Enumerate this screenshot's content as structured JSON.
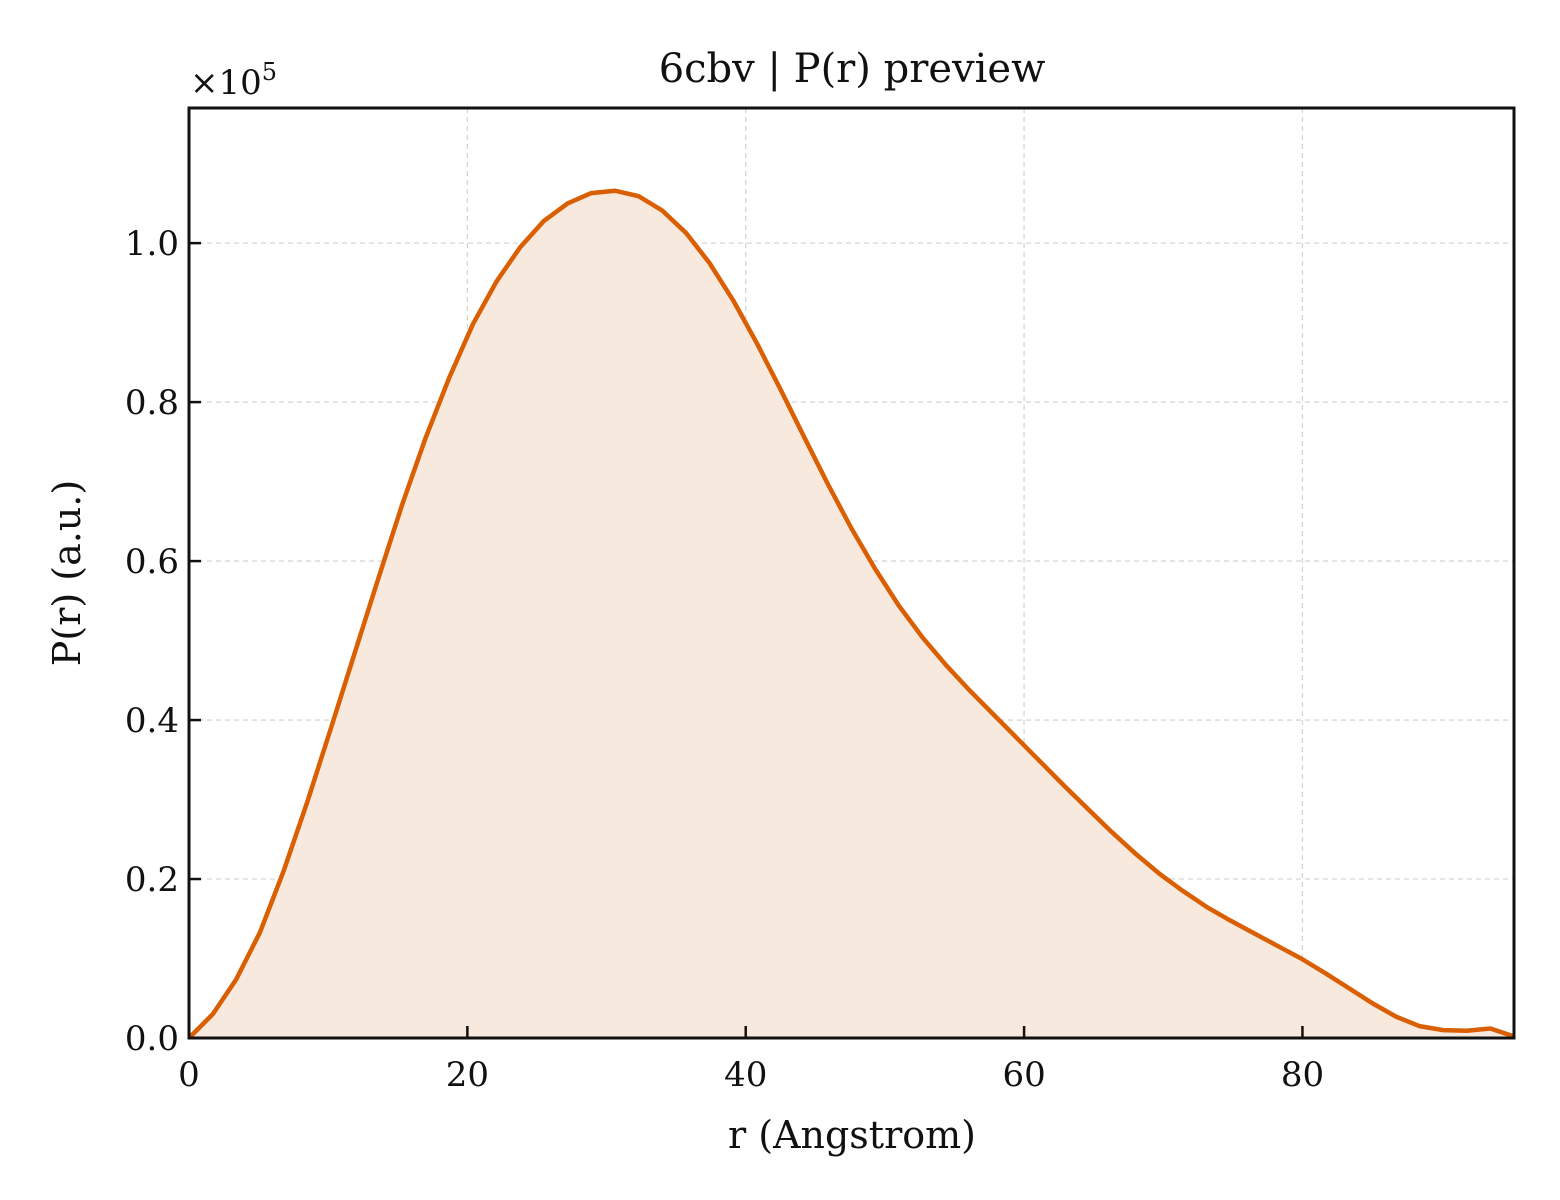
{
  "chart_data": {
    "type": "area",
    "title": "6cbv | P(r) preview",
    "xlabel": "r (Angstrom)",
    "ylabel": "P(r) (a.u.)",
    "y_offset_label": "×10",
    "y_offset_exponent": "5",
    "xlim": [
      0,
      95.2
    ],
    "ylim": [
      0,
      1.17
    ],
    "grid": true,
    "line_color": "#d95f02",
    "fill_color": "#f8e9de",
    "xticks": [
      0,
      20,
      40,
      60,
      80
    ],
    "xtick_labels": [
      "0",
      "20",
      "40",
      "60",
      "80"
    ],
    "yticks": [
      0,
      0.2,
      0.4,
      0.6,
      0.8,
      1.0
    ],
    "ytick_labels": [
      "0.0",
      "0.2",
      "0.4",
      "0.6",
      "0.8",
      "1.0"
    ],
    "series": [
      {
        "x": [
          0,
          1.7,
          3.4,
          5.1,
          6.8,
          8.5,
          10.2,
          11.9,
          13.6,
          15.3,
          17.0,
          18.7,
          20.4,
          22.1,
          23.8,
          25.5,
          27.2,
          28.9,
          30.6,
          32.3,
          34.0,
          35.7,
          37.4,
          39.1,
          40.8,
          42.5,
          44.2,
          45.9,
          47.6,
          49.3,
          51.0,
          52.7,
          54.4,
          56.1,
          57.8,
          59.5,
          61.2,
          62.9,
          64.6,
          66.3,
          68.0,
          69.7,
          71.4,
          73.1,
          74.8,
          76.5,
          78.2,
          79.9,
          81.6,
          83.3,
          85.0,
          86.7,
          88.4,
          90.1,
          91.8,
          93.5,
          95.2
        ],
        "values": [
          0.0,
          0.03,
          0.074,
          0.133,
          0.21,
          0.297,
          0.39,
          0.484,
          0.578,
          0.67,
          0.755,
          0.831,
          0.898,
          0.952,
          0.995,
          1.028,
          1.05,
          1.063,
          1.066,
          1.059,
          1.041,
          1.013,
          0.975,
          0.928,
          0.874,
          0.816,
          0.756,
          0.697,
          0.641,
          0.59,
          0.544,
          0.504,
          0.469,
          0.437,
          0.407,
          0.377,
          0.347,
          0.317,
          0.288,
          0.259,
          0.232,
          0.207,
          0.185,
          0.165,
          0.148,
          0.132,
          0.116,
          0.1,
          0.082,
          0.063,
          0.044,
          0.027,
          0.015,
          0.01,
          0.009,
          0.012,
          0.002
        ]
      }
    ]
  }
}
